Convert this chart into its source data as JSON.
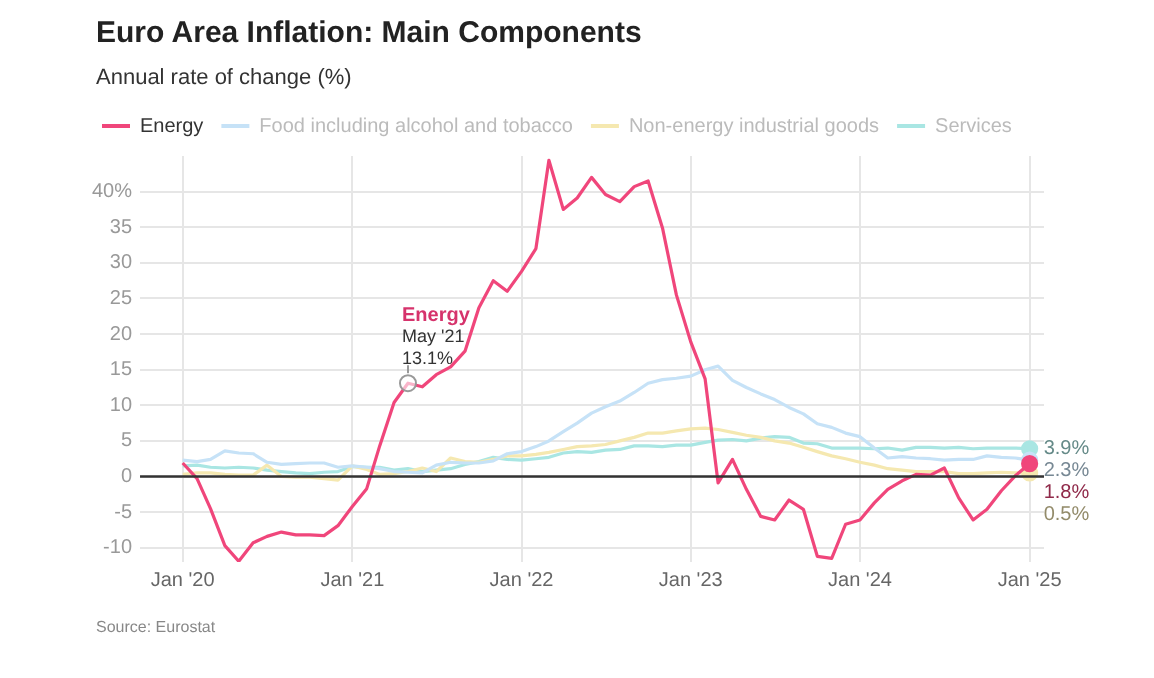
{
  "chart_data": {
    "type": "line",
    "title": "Euro Area Inflation: Main Components",
    "subtitle": "Annual rate of change (%)",
    "x": [
      "2020-01",
      "2020-02",
      "2020-03",
      "2020-04",
      "2020-05",
      "2020-06",
      "2020-07",
      "2020-08",
      "2020-09",
      "2020-10",
      "2020-11",
      "2020-12",
      "2021-01",
      "2021-02",
      "2021-03",
      "2021-04",
      "2021-05",
      "2021-06",
      "2021-07",
      "2021-08",
      "2021-09",
      "2021-10",
      "2021-11",
      "2021-12",
      "2022-01",
      "2022-02",
      "2022-03",
      "2022-04",
      "2022-05",
      "2022-06",
      "2022-07",
      "2022-08",
      "2022-09",
      "2022-10",
      "2022-11",
      "2022-12",
      "2023-01",
      "2023-02",
      "2023-03",
      "2023-04",
      "2023-05",
      "2023-06",
      "2023-07",
      "2023-08",
      "2023-09",
      "2023-10",
      "2023-11",
      "2023-12",
      "2024-01",
      "2024-02",
      "2024-03",
      "2024-04",
      "2024-05",
      "2024-06",
      "2024-07",
      "2024-08",
      "2024-09",
      "2024-10",
      "2024-11",
      "2024-12",
      "2025-01"
    ],
    "series": [
      {
        "name": "Energy",
        "color": "#f0467b",
        "values": [
          1.9,
          -0.3,
          -4.5,
          -9.7,
          -11.9,
          -9.3,
          -8.4,
          -7.8,
          -8.2,
          -8.2,
          -8.3,
          -6.9,
          -4.2,
          -1.7,
          4.3,
          10.4,
          13.1,
          12.6,
          14.3,
          15.4,
          17.6,
          23.7,
          27.5,
          26.0,
          28.8,
          32.0,
          44.4,
          37.5,
          39.1,
          42.0,
          39.6,
          38.6,
          40.7,
          41.5,
          34.9,
          25.5,
          18.9,
          13.7,
          -0.9,
          2.4,
          -1.8,
          -5.6,
          -6.1,
          -3.3,
          -4.6,
          -11.2,
          -11.5,
          -6.7,
          -6.1,
          -3.7,
          -1.8,
          -0.6,
          0.3,
          0.2,
          1.2,
          -3.0,
          -6.1,
          -4.6,
          -2.0,
          0.1,
          1.8
        ],
        "value_labels": [
          null,
          null,
          null,
          null,
          null,
          null,
          null,
          null,
          null,
          null,
          null,
          null,
          null,
          null,
          null,
          null,
          null,
          null,
          null,
          null,
          null,
          null,
          null,
          null,
          null,
          null,
          null,
          null,
          null,
          null,
          null,
          null,
          null,
          null,
          null,
          null,
          null,
          null,
          null,
          null,
          null,
          null,
          null,
          null,
          null,
          null,
          null,
          null,
          null,
          null,
          null,
          null,
          null,
          null,
          null,
          null,
          null,
          null,
          null,
          null,
          "1.8%"
        ]
      },
      {
        "name": "Food including alcohol and tobacco",
        "color": "#c6e2f7",
        "values": [
          2.3,
          2.1,
          2.4,
          3.6,
          3.3,
          3.2,
          2.0,
          1.7,
          1.8,
          1.9,
          1.9,
          1.3,
          1.5,
          1.3,
          1.1,
          0.7,
          0.6,
          0.5,
          1.6,
          2.0,
          1.9,
          1.9,
          2.2,
          3.2,
          3.5,
          4.2,
          5.0,
          6.3,
          7.5,
          8.9,
          9.8,
          10.6,
          11.8,
          13.1,
          13.6,
          13.8,
          14.1,
          15.0,
          15.5,
          13.5,
          12.5,
          11.6,
          10.8,
          9.7,
          8.8,
          7.4,
          6.9,
          6.1,
          5.6,
          4.0,
          2.6,
          2.8,
          2.6,
          2.5,
          2.3,
          2.4,
          2.4,
          2.9,
          2.7,
          2.6,
          2.3
        ],
        "value_labels": [
          null,
          null,
          null,
          null,
          null,
          null,
          null,
          null,
          null,
          null,
          null,
          null,
          null,
          null,
          null,
          null,
          null,
          null,
          null,
          null,
          null,
          null,
          null,
          null,
          null,
          null,
          null,
          null,
          null,
          null,
          null,
          null,
          null,
          null,
          null,
          null,
          null,
          null,
          null,
          null,
          null,
          null,
          null,
          null,
          null,
          null,
          null,
          null,
          null,
          null,
          null,
          null,
          null,
          null,
          null,
          null,
          null,
          null,
          null,
          null,
          "2.3%"
        ]
      },
      {
        "name": "Non-energy industrial goods",
        "color": "#f5e8b0",
        "values": [
          0.3,
          0.5,
          0.5,
          0.3,
          0.2,
          0.2,
          1.6,
          0.0,
          -0.1,
          -0.1,
          -0.3,
          -0.5,
          1.5,
          1.0,
          0.3,
          0.4,
          0.7,
          1.2,
          0.7,
          2.6,
          2.1,
          2.0,
          2.4,
          2.9,
          2.9,
          3.1,
          3.4,
          3.8,
          4.2,
          4.3,
          4.5,
          5.0,
          5.5,
          6.1,
          6.1,
          6.4,
          6.7,
          6.8,
          6.6,
          6.2,
          5.8,
          5.5,
          5.0,
          4.7,
          4.1,
          3.5,
          2.9,
          2.5,
          2.0,
          1.6,
          1.1,
          0.9,
          0.7,
          0.7,
          0.7,
          0.4,
          0.4,
          0.5,
          0.6,
          0.5,
          0.5
        ],
        "value_labels": [
          null,
          null,
          null,
          null,
          null,
          null,
          null,
          null,
          null,
          null,
          null,
          null,
          null,
          null,
          null,
          null,
          null,
          null,
          null,
          null,
          null,
          null,
          null,
          null,
          null,
          null,
          null,
          null,
          null,
          null,
          null,
          null,
          null,
          null,
          null,
          null,
          null,
          null,
          null,
          null,
          null,
          null,
          null,
          null,
          null,
          null,
          null,
          null,
          null,
          null,
          null,
          null,
          null,
          null,
          null,
          null,
          null,
          null,
          null,
          null,
          "0.5%"
        ]
      },
      {
        "name": "Services",
        "color": "#a9e6e3",
        "values": [
          1.5,
          1.6,
          1.3,
          1.2,
          1.3,
          1.2,
          0.9,
          0.7,
          0.5,
          0.4,
          0.6,
          0.7,
          1.4,
          1.3,
          1.3,
          0.9,
          1.1,
          0.7,
          0.9,
          1.1,
          1.7,
          2.1,
          2.7,
          2.4,
          2.3,
          2.5,
          2.7,
          3.3,
          3.5,
          3.4,
          3.7,
          3.8,
          4.3,
          4.3,
          4.2,
          4.4,
          4.4,
          4.8,
          5.1,
          5.2,
          5.0,
          5.4,
          5.6,
          5.5,
          4.7,
          4.6,
          4.0,
          4.0,
          4.0,
          3.9,
          4.0,
          3.7,
          4.1,
          4.1,
          4.0,
          4.1,
          3.9,
          4.0,
          4.0,
          4.0,
          3.9
        ],
        "value_labels": [
          null,
          null,
          null,
          null,
          null,
          null,
          null,
          null,
          null,
          null,
          null,
          null,
          null,
          null,
          null,
          null,
          null,
          null,
          null,
          null,
          null,
          null,
          null,
          null,
          null,
          null,
          null,
          null,
          null,
          null,
          null,
          null,
          null,
          null,
          null,
          null,
          null,
          null,
          null,
          null,
          null,
          null,
          null,
          null,
          null,
          null,
          null,
          null,
          null,
          null,
          null,
          null,
          null,
          null,
          null,
          null,
          null,
          null,
          null,
          null,
          "3.9%"
        ]
      }
    ],
    "xlim": [
      "2019-10",
      "2025-02"
    ],
    "xticks": [
      {
        "value": "2020-01",
        "label": "Jan '20"
      },
      {
        "value": "2021-01",
        "label": "Jan '21"
      },
      {
        "value": "2022-01",
        "label": "Jan '22"
      },
      {
        "value": "2023-01",
        "label": "Jan '23"
      },
      {
        "value": "2024-01",
        "label": "Jan '24"
      },
      {
        "value": "2025-01",
        "label": "Jan '25"
      }
    ],
    "ylim": [
      -12,
      45
    ],
    "yticks": [
      -10,
      -5,
      0,
      5,
      10,
      15,
      20,
      25,
      30,
      35,
      {
        "value": 40,
        "label": "40%"
      }
    ],
    "grid": true,
    "legend": "top left",
    "ref_lines": [
      {
        "axis": "y",
        "value": 0,
        "color": "#333333"
      }
    ],
    "annotations": [
      {
        "text": "Energy\nMay '21\n13.1%",
        "x": "2021-05",
        "y": 13.1
      },
      "Source: Eurostat"
    ]
  }
}
